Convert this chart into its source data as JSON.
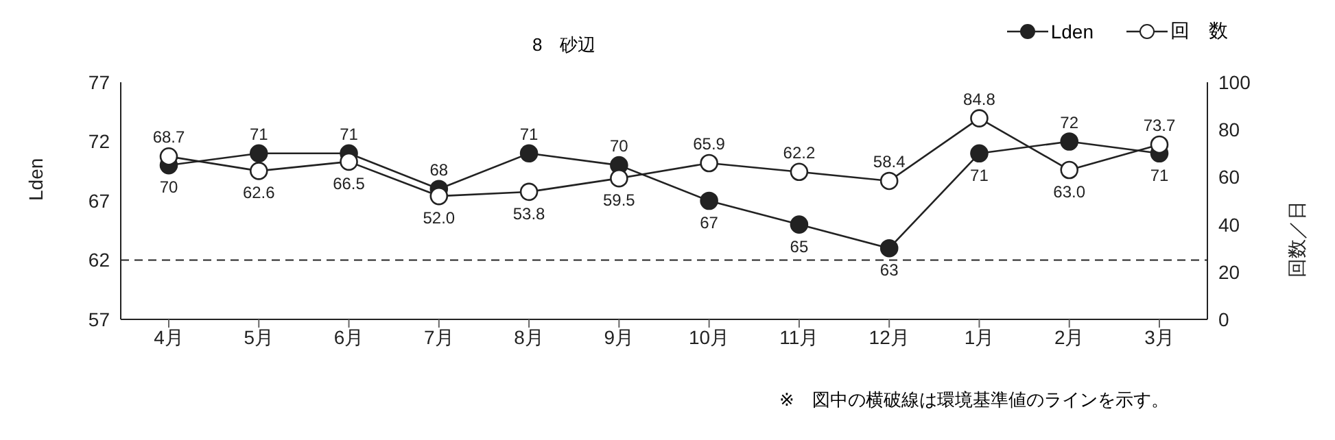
{
  "chart_data": {
    "type": "line",
    "title": "8　砂辺",
    "categories": [
      "4月",
      "5月",
      "6月",
      "7月",
      "8月",
      "9月",
      "10月",
      "11月",
      "12月",
      "1月",
      "2月",
      "3月"
    ],
    "series": [
      {
        "name": "Lden",
        "color": "#222222",
        "marker": "circle",
        "values": [
          70,
          71,
          71,
          68,
          71,
          70,
          67,
          65,
          63,
          71,
          72,
          71
        ],
        "value_labels": [
          "70",
          "71",
          "71",
          "68",
          "71",
          "70",
          "67",
          "65",
          "63",
          "71",
          "72",
          "71"
        ]
      },
      {
        "name": "回　数",
        "color": "#222222",
        "marker": "circle",
        "axis": "y2",
        "values": [
          68.7,
          62.6,
          66.5,
          52.0,
          53.8,
          59.5,
          65.9,
          62.2,
          58.4,
          84.8,
          63.0,
          73.7
        ],
        "value_labels": [
          "68.7",
          "62.6",
          "66.5",
          "52.0",
          "53.8",
          "59.5",
          "65.9",
          "62.2",
          "58.4",
          "84.8",
          "63.0",
          "73.7"
        ]
      }
    ],
    "ylabel": "Lden",
    "y2label": "回数／日",
    "ylim": [
      57,
      77
    ],
    "yticks": [
      57,
      62,
      67,
      72,
      77
    ],
    "y2lim": [
      0,
      100
    ],
    "y2ticks": [
      0,
      20,
      40,
      60,
      80,
      100
    ],
    "ref_lines": [
      {
        "axis": "y",
        "value": 62,
        "color": "#222222",
        "line_style": "dashed"
      }
    ],
    "legend": "top right",
    "annotations": [
      "※　図中の横破線は環境基準値のラインを示す。"
    ]
  }
}
